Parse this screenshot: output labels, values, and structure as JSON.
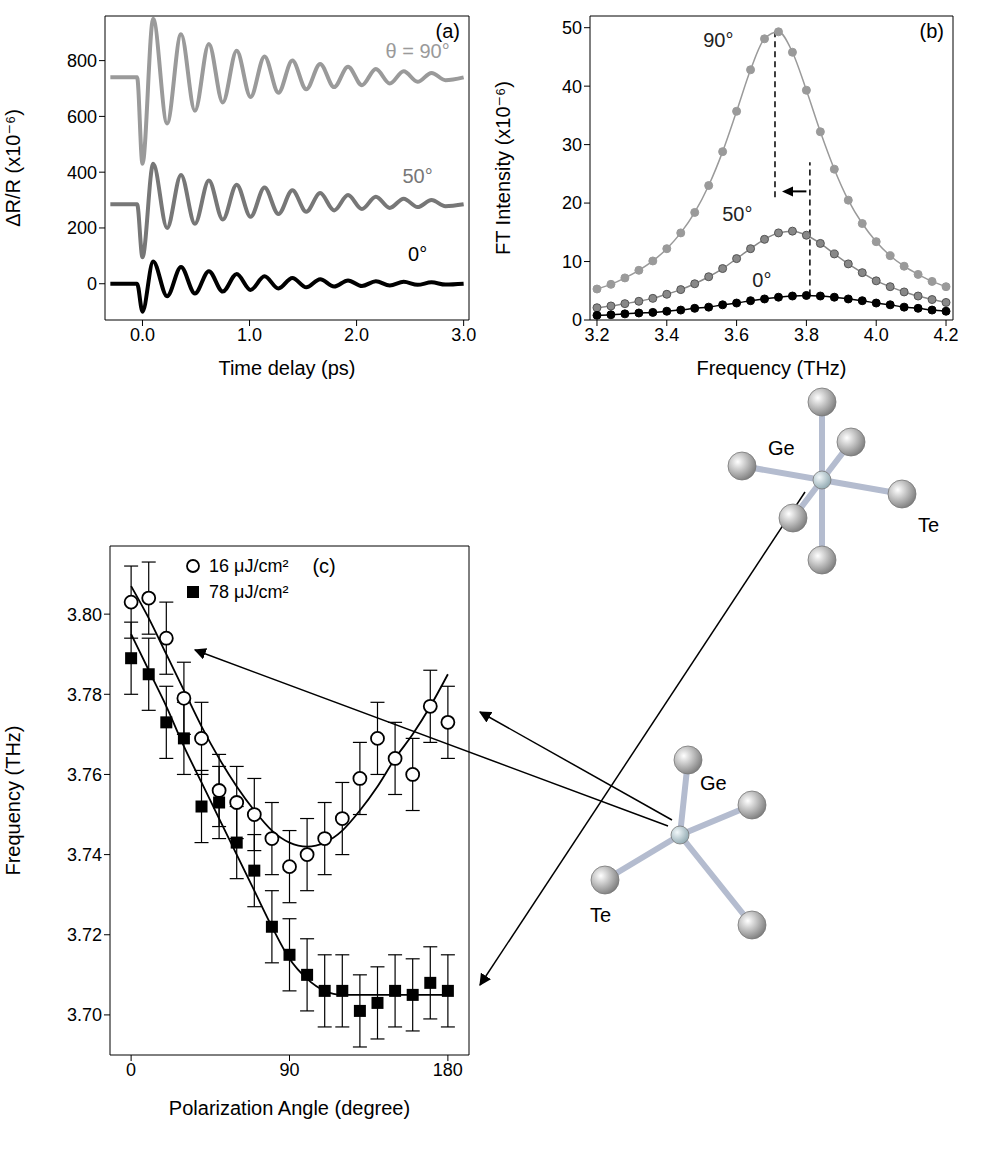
{
  "chart_data": [
    {
      "type": "line",
      "panel": "(a)",
      "x_label": "Time delay (ps)",
      "y_label": "ΔR/R (x10⁻⁶)",
      "x": [
        -0.3,
        -0.05,
        0,
        0.1,
        0.23,
        0.36,
        0.49,
        0.62,
        0.75,
        0.88,
        1.01,
        1.14,
        1.27,
        1.4,
        1.53,
        1.66,
        1.79,
        1.92,
        2.05,
        2.18,
        2.31,
        2.44,
        2.57,
        2.7,
        2.83,
        3.0
      ],
      "series": [
        {
          "name": "θ = 90°",
          "color": "#9a9a9a",
          "values": [
            740,
            740,
            430,
            950,
            575,
            895,
            620,
            860,
            650,
            835,
            670,
            815,
            685,
            800,
            697,
            788,
            705,
            778,
            712,
            770,
            718,
            762,
            724,
            756,
            730,
            740
          ]
        },
        {
          "name": "50°",
          "color": "#777777",
          "values": [
            285,
            285,
            95,
            430,
            200,
            390,
            215,
            370,
            230,
            355,
            240,
            345,
            250,
            335,
            258,
            325,
            263,
            318,
            268,
            312,
            272,
            305,
            275,
            300,
            278,
            285
          ]
        },
        {
          "name": "0°",
          "color": "#000000",
          "values": [
            0,
            0,
            -100,
            80,
            -45,
            60,
            -35,
            45,
            -28,
            35,
            -22,
            27,
            -17,
            21,
            -13,
            16,
            -10,
            12,
            -8,
            9,
            -6,
            7,
            -4,
            5,
            -3,
            0
          ]
        }
      ],
      "xlim": [
        -0.35,
        3.05
      ],
      "xticks": [
        {
          "value": 0,
          "label": "0.0"
        },
        {
          "value": 1,
          "label": "1.0"
        },
        {
          "value": 2,
          "label": "2.0"
        },
        {
          "value": 3,
          "label": "3.0"
        }
      ],
      "ylim": [
        -130,
        960
      ],
      "yticks": [
        0,
        200,
        400,
        600,
        800
      ]
    },
    {
      "type": "line",
      "panel": "(b)",
      "marker": "circle",
      "x_label": "Frequency (THz)",
      "y_label": "FT Intensity (x10⁻⁶)",
      "x": [
        3.2,
        3.24,
        3.28,
        3.32,
        3.36,
        3.4,
        3.44,
        3.48,
        3.52,
        3.56,
        3.6,
        3.64,
        3.68,
        3.72,
        3.76,
        3.8,
        3.84,
        3.88,
        3.92,
        3.96,
        4.0,
        4.04,
        4.08,
        4.12,
        4.16,
        4.2
      ],
      "series": [
        {
          "name": "90°",
          "color": "#9a9a9a",
          "values": [
            5.3,
            6.1,
            7.2,
            8.5,
            10.1,
            12.2,
            14.9,
            18.4,
            23.0,
            28.8,
            35.7,
            42.8,
            48.1,
            49.3,
            45.8,
            39.3,
            32.2,
            25.8,
            20.5,
            16.5,
            13.4,
            11.0,
            9.2,
            7.8,
            6.6,
            5.7
          ]
        },
        {
          "name": "50°",
          "color": "#888888",
          "values": [
            2.1,
            2.4,
            2.8,
            3.2,
            3.7,
            4.4,
            5.2,
            6.2,
            7.4,
            8.8,
            10.5,
            12.2,
            13.8,
            14.9,
            15.2,
            14.5,
            13.1,
            11.3,
            9.6,
            8.1,
            6.7,
            5.7,
            4.8,
            4.1,
            3.5,
            3.0
          ]
        },
        {
          "name": "0°",
          "color": "#000000",
          "values": [
            0.8,
            0.9,
            1.05,
            1.2,
            1.3,
            1.5,
            1.7,
            2.0,
            2.2,
            2.6,
            2.9,
            3.3,
            3.6,
            3.9,
            4.1,
            4.2,
            4.1,
            3.9,
            3.6,
            3.3,
            2.9,
            2.6,
            2.2,
            2.0,
            1.7,
            1.5
          ]
        }
      ],
      "xlim": [
        3.18,
        4.22
      ],
      "xticks": [
        3.2,
        3.4,
        3.6,
        3.8,
        {
          "value": 4,
          "label": "4.0"
        },
        4.2
      ],
      "ylim": [
        0,
        52
      ],
      "yticks": [
        0,
        10,
        20,
        30,
        40,
        50
      ],
      "dashed_lines": [
        {
          "x": 3.71,
          "y": [
            21,
            49.5
          ]
        },
        {
          "x": 3.81,
          "y": [
            4.2,
            27
          ]
        }
      ],
      "arrow": {
        "x": [
          3.8,
          3.73
        ],
        "y": 22
      }
    },
    {
      "type": "scatter",
      "panel": "(c)",
      "x_label": "Polarization Angle (degree)",
      "y_label": "Frequency (THz)",
      "legend": "upper center",
      "x": [
        0,
        10,
        20,
        30,
        40,
        50,
        60,
        70,
        80,
        90,
        100,
        110,
        120,
        130,
        140,
        150,
        160,
        170,
        180
      ],
      "series": [
        {
          "name": "16 μJ/cm²",
          "color": "#000000",
          "marker": "circle",
          "values": [
            3.803,
            3.804,
            3.794,
            3.779,
            3.769,
            3.756,
            3.753,
            3.75,
            3.744,
            3.737,
            3.74,
            3.744,
            3.749,
            3.759,
            3.769,
            3.764,
            3.76,
            3.777,
            3.773
          ],
          "errors": [
            0.009,
            0.009,
            0.009,
            0.009,
            0.009,
            0.009,
            0.009,
            0.009,
            0.009,
            0.009,
            0.009,
            0.009,
            0.009,
            0.009,
            0.009,
            0.009,
            0.009,
            0.009,
            0.009
          ],
          "fit": [
            3.807,
            3.799,
            3.79,
            3.781,
            3.772,
            3.764,
            3.757,
            3.751,
            3.746,
            3.743,
            3.742,
            3.743,
            3.746,
            3.751,
            3.757,
            3.764,
            3.77,
            3.777,
            3.785
          ]
        },
        {
          "name": "78 μJ/cm²",
          "color": "#000000",
          "marker": "square",
          "values": [
            3.789,
            3.785,
            3.773,
            3.769,
            3.752,
            3.753,
            3.743,
            3.736,
            3.722,
            3.715,
            3.71,
            3.706,
            3.706,
            3.701,
            3.703,
            3.706,
            3.705,
            3.708,
            3.706
          ],
          "errors": [
            0.009,
            0.009,
            0.009,
            0.009,
            0.009,
            0.009,
            0.009,
            0.009,
            0.009,
            0.009,
            0.009,
            0.009,
            0.009,
            0.009,
            0.009,
            0.009,
            0.009,
            0.009,
            0.009
          ],
          "fit": [
            3.795,
            3.786,
            3.777,
            3.767,
            3.758,
            3.749,
            3.74,
            3.731,
            3.722,
            3.714,
            3.709,
            3.706,
            3.705,
            3.705,
            3.705,
            3.705,
            3.705,
            3.705,
            3.705
          ]
        }
      ],
      "xlim": [
        -12,
        192
      ],
      "xticks": [
        0,
        90,
        180
      ],
      "ylim": [
        3.69,
        3.817
      ],
      "yticks": [
        {
          "value": 3.7,
          "label": "3.70"
        },
        3.72,
        3.74,
        3.76,
        3.78,
        {
          "value": 3.8,
          "label": "3.80"
        }
      ]
    }
  ],
  "diagram": {
    "structures": [
      {
        "center": "Ge",
        "neighbor": "Te"
      },
      {
        "center": "Ge",
        "neighbor": "Te"
      }
    ]
  }
}
